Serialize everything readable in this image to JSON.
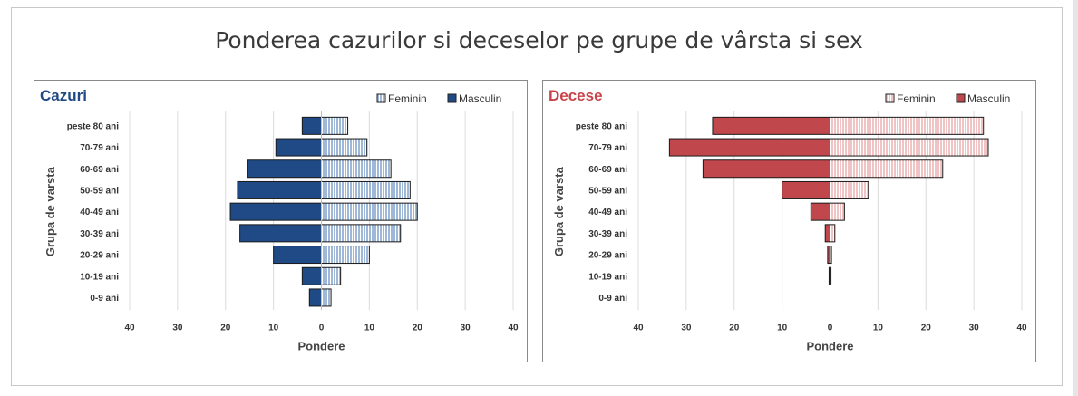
{
  "title": "Ponderea cazurilor si deceselor pe grupe de vârsta si sex",
  "colors": {
    "cazuri_masculin": "#1f4a86",
    "cazuri_feminin": "#9fb8d8",
    "decese_masculin": "#c0484c",
    "decese_feminin": "#f0c4c5",
    "title_cazuri": "#1f4a86",
    "title_decese": "#c8444a"
  },
  "chart_data": [
    {
      "type": "bar",
      "orientation": "horizontal-population-pyramid",
      "title": "Cazuri",
      "xlabel": "Pondere",
      "ylabel": "Grupa de varsta",
      "xlim": [
        -40,
        40
      ],
      "xticks": [
        -40,
        -30,
        -20,
        -10,
        0,
        10,
        20,
        30,
        40
      ],
      "xtick_labels": [
        "40",
        "30",
        "20",
        "10",
        "0",
        "10",
        "20",
        "30",
        "40"
      ],
      "legend_position": "top-right",
      "grid": true,
      "categories": [
        "peste 80 ani",
        "70-79 ani",
        "60-69 ani",
        "50-59 ani",
        "40-49 ani",
        "30-39 ani",
        "20-29 ani",
        "10-19 ani",
        "0-9 ani"
      ],
      "series": [
        {
          "name": "Feminin",
          "values": [
            5.5,
            9.5,
            14.5,
            18.5,
            20,
            16.5,
            10,
            4,
            2
          ]
        },
        {
          "name": "Masculin",
          "values": [
            4,
            9.5,
            15.5,
            17.5,
            19,
            17,
            10,
            4,
            2.5
          ]
        }
      ]
    },
    {
      "type": "bar",
      "orientation": "horizontal-population-pyramid",
      "title": "Decese",
      "xlabel": "Pondere",
      "ylabel": "Grupa de varsta",
      "xlim": [
        -40,
        40
      ],
      "xticks": [
        -40,
        -30,
        -20,
        -10,
        0,
        10,
        20,
        30,
        40
      ],
      "xtick_labels": [
        "40",
        "30",
        "20",
        "10",
        "0",
        "10",
        "20",
        "30",
        "40"
      ],
      "legend_position": "top-right",
      "grid": true,
      "categories": [
        "peste 80 ani",
        "70-79 ani",
        "60-69 ani",
        "50-59 ani",
        "40-49 ani",
        "30-39 ani",
        "20-29 ani",
        "10-19 ani",
        "0-9 ani"
      ],
      "series": [
        {
          "name": "Feminin",
          "values": [
            32,
            33,
            23.5,
            8,
            3,
            1,
            0.3,
            0.2,
            0
          ]
        },
        {
          "name": "Masculin",
          "values": [
            24.5,
            33.5,
            26.5,
            10,
            4,
            1,
            0.5,
            0.2,
            0
          ]
        }
      ]
    }
  ]
}
